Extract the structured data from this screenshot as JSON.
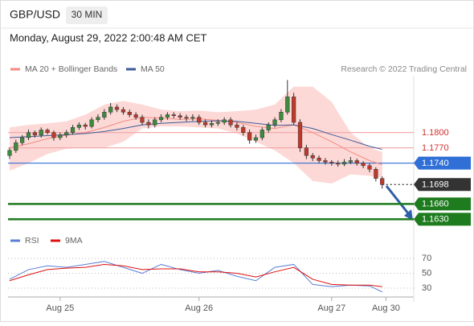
{
  "header": {
    "symbol": "GBP/USD",
    "timeframe": "30 MIN",
    "datetime": "Monday, August 29, 2022 2:00:48 AM CET"
  },
  "chart_data": [
    {
      "type": "candlestick",
      "annotation": "Research © 2022 Trading Central",
      "up_color": "#3d8b3d",
      "down_color": "#c0392b",
      "xlim": [
        -0.5,
        64
      ],
      "ylim": [
        1.161,
        1.191
      ],
      "candles": [
        [
          1.1755,
          1.177,
          1.1748,
          1.1765
        ],
        [
          1.1765,
          1.1786,
          1.176,
          1.178
        ],
        [
          1.178,
          1.1795,
          1.1775,
          1.179
        ],
        [
          1.179,
          1.1806,
          1.1785,
          1.18
        ],
        [
          1.18,
          1.1804,
          1.179,
          1.1795
        ],
        [
          1.1795,
          1.181,
          1.179,
          1.1805
        ],
        [
          1.1805,
          1.1808,
          1.1796,
          1.18
        ],
        [
          1.18,
          1.1804,
          1.1784,
          1.179
        ],
        [
          1.179,
          1.18,
          1.1785,
          1.1795
        ],
        [
          1.1795,
          1.1805,
          1.179,
          1.18
        ],
        [
          1.18,
          1.1815,
          1.1796,
          1.181
        ],
        [
          1.181,
          1.182,
          1.1805,
          1.1815
        ],
        [
          1.1815,
          1.1819,
          1.1806,
          1.1812
        ],
        [
          1.1812,
          1.183,
          1.1808,
          1.1825
        ],
        [
          1.1825,
          1.1836,
          1.182,
          1.183
        ],
        [
          1.183,
          1.1846,
          1.1825,
          1.184
        ],
        [
          1.184,
          1.1858,
          1.1835,
          1.185
        ],
        [
          1.185,
          1.1855,
          1.184,
          1.1845
        ],
        [
          1.1845,
          1.185,
          1.1835,
          1.184
        ],
        [
          1.184,
          1.1845,
          1.183,
          1.1835
        ],
        [
          1.1835,
          1.184,
          1.1825,
          1.183
        ],
        [
          1.183,
          1.1835,
          1.1814,
          1.182
        ],
        [
          1.182,
          1.1826,
          1.1808,
          1.1815
        ],
        [
          1.1815,
          1.183,
          1.181,
          1.1825
        ],
        [
          1.1825,
          1.1836,
          1.182,
          1.183
        ],
        [
          1.183,
          1.184,
          1.1825,
          1.1835
        ],
        [
          1.1835,
          1.184,
          1.1828,
          1.1833
        ],
        [
          1.1833,
          1.1838,
          1.1825,
          1.183
        ],
        [
          1.183,
          1.1835,
          1.1822,
          1.1828
        ],
        [
          1.1828,
          1.1836,
          1.1823,
          1.183
        ],
        [
          1.183,
          1.1835,
          1.1815,
          1.182
        ],
        [
          1.182,
          1.1826,
          1.181,
          1.1815
        ],
        [
          1.1815,
          1.1824,
          1.181,
          1.1818
        ],
        [
          1.1818,
          1.1826,
          1.1813,
          1.182
        ],
        [
          1.182,
          1.183,
          1.1815,
          1.1825
        ],
        [
          1.1825,
          1.183,
          1.181,
          1.1815
        ],
        [
          1.1815,
          1.182,
          1.1804,
          1.181
        ],
        [
          1.181,
          1.1815,
          1.1794,
          1.18
        ],
        [
          1.18,
          1.1806,
          1.1778,
          1.1785
        ],
        [
          1.1785,
          1.1796,
          1.178,
          1.179
        ],
        [
          1.179,
          1.181,
          1.1785,
          1.1805
        ],
        [
          1.1805,
          1.182,
          1.18,
          1.1815
        ],
        [
          1.1815,
          1.183,
          1.181,
          1.1825
        ],
        [
          1.1825,
          1.1846,
          1.182,
          1.184
        ],
        [
          1.184,
          1.1903,
          1.1835,
          1.187
        ],
        [
          1.187,
          1.1878,
          1.1815,
          1.182
        ],
        [
          1.182,
          1.1826,
          1.1762,
          1.177
        ],
        [
          1.177,
          1.1776,
          1.1748,
          1.1755
        ],
        [
          1.1755,
          1.176,
          1.1744,
          1.175
        ],
        [
          1.175,
          1.1755,
          1.174,
          1.1745
        ],
        [
          1.1745,
          1.175,
          1.1737,
          1.1742
        ],
        [
          1.1742,
          1.1746,
          1.1735,
          1.174
        ],
        [
          1.174,
          1.1745,
          1.1733,
          1.1738
        ],
        [
          1.1738,
          1.1748,
          1.1734,
          1.1742
        ],
        [
          1.1742,
          1.1752,
          1.1738,
          1.1745
        ],
        [
          1.1745,
          1.1749,
          1.1735,
          1.174
        ],
        [
          1.174,
          1.1744,
          1.173,
          1.1735
        ],
        [
          1.1735,
          1.174,
          1.1722,
          1.1728
        ],
        [
          1.1728,
          1.1732,
          1.1704,
          1.171
        ],
        [
          1.171,
          1.1714,
          1.169,
          1.1698
        ]
      ],
      "series": [
        {
          "name": "MA 20 + Bollinger Bands",
          "color": "#f28b82",
          "band_color": "#fcd9d6",
          "x": [
            0,
            3,
            6,
            9,
            12,
            15,
            18,
            21,
            24,
            27,
            30,
            33,
            36,
            39,
            42,
            45,
            48,
            51,
            54,
            57,
            59
          ],
          "values": [
            1.177,
            1.1778,
            1.1788,
            1.1795,
            1.18,
            1.181,
            1.1822,
            1.183,
            1.1828,
            1.1826,
            1.1827,
            1.1824,
            1.182,
            1.1812,
            1.1808,
            1.1815,
            1.18,
            1.1782,
            1.1762,
            1.1745,
            1.1737
          ],
          "upper": [
            1.181,
            1.1815,
            1.1818,
            1.1822,
            1.1835,
            1.1855,
            1.1862,
            1.1855,
            1.1845,
            1.1842,
            1.1843,
            1.184,
            1.1842,
            1.1845,
            1.1855,
            1.189,
            1.189,
            1.186,
            1.18,
            1.177,
            1.1762
          ],
          "lower": [
            1.1725,
            1.174,
            1.1758,
            1.1768,
            1.177,
            1.177,
            1.1782,
            1.1808,
            1.1812,
            1.1812,
            1.181,
            1.1808,
            1.1798,
            1.1782,
            1.1765,
            1.174,
            1.1705,
            1.17,
            1.1718,
            1.1715,
            1.1712
          ]
        },
        {
          "name": "MA 50",
          "color": "#3d5a99",
          "x": [
            0,
            3,
            6,
            9,
            12,
            15,
            18,
            21,
            24,
            27,
            30,
            33,
            36,
            39,
            42,
            45,
            48,
            51,
            54,
            57,
            59
          ],
          "values": [
            1.179,
            1.1792,
            1.1794,
            1.1796,
            1.1798,
            1.1802,
            1.1808,
            1.1815,
            1.1818,
            1.182,
            1.1822,
            1.1823,
            1.1822,
            1.1818,
            1.1814,
            1.1815,
            1.1808,
            1.1796,
            1.1785,
            1.1773,
            1.1767
          ]
        }
      ],
      "levels": [
        {
          "value": 1.18,
          "label": "1.1800",
          "color": "#f4a3a3",
          "text_color": "#d0312d",
          "boxed": false
        },
        {
          "value": 1.177,
          "label": "1.1770",
          "color": "#f4a3a3",
          "text_color": "#d0312d",
          "boxed": false
        },
        {
          "value": 1.174,
          "label": "1.1740",
          "color": "#2f6fd6",
          "text_color": "#ffffff",
          "boxed": true
        },
        {
          "value": 1.1698,
          "label": "1.1698",
          "color": "#333333",
          "text_color": "#ffffff",
          "boxed": true,
          "dotted": true
        },
        {
          "value": 1.166,
          "label": "1.1660",
          "color": "#1e7b1e",
          "text_color": "#ffffff",
          "boxed": true
        },
        {
          "value": 1.163,
          "label": "1.1630",
          "color": "#1e7b1e",
          "text_color": "#ffffff",
          "boxed": true
        }
      ]
    },
    {
      "type": "line",
      "xlim": [
        -0.5,
        64
      ],
      "ylim": [
        17,
        82
      ],
      "yticks": [
        30,
        50,
        70
      ],
      "grid": true,
      "xticks": [
        {
          "value": 8,
          "label": "Aug 25"
        },
        {
          "value": 30,
          "label": "Aug 26"
        },
        {
          "value": 51,
          "label": "Aug 27"
        },
        {
          "value": 59.6,
          "label": "Aug 30"
        }
      ],
      "series": [
        {
          "name": "RSI",
          "color": "#5b7fd6",
          "x": [
            0,
            3,
            6,
            9,
            12,
            15,
            18,
            21,
            24,
            27,
            30,
            33,
            36,
            39,
            42,
            45,
            48,
            51,
            54,
            57,
            59
          ],
          "values": [
            42,
            55,
            60,
            58,
            62,
            66,
            58,
            50,
            62,
            55,
            50,
            54,
            46,
            40,
            58,
            62,
            35,
            32,
            34,
            33,
            25
          ]
        },
        {
          "name": "9MA",
          "color": "#e01010",
          "x": [
            0,
            3,
            6,
            9,
            12,
            15,
            18,
            21,
            24,
            27,
            30,
            33,
            36,
            39,
            42,
            45,
            48,
            51,
            54,
            57,
            59
          ],
          "values": [
            40,
            48,
            55,
            57,
            58,
            62,
            60,
            55,
            56,
            56,
            52,
            52,
            50,
            45,
            52,
            58,
            42,
            35,
            34,
            34,
            32
          ]
        }
      ]
    }
  ]
}
